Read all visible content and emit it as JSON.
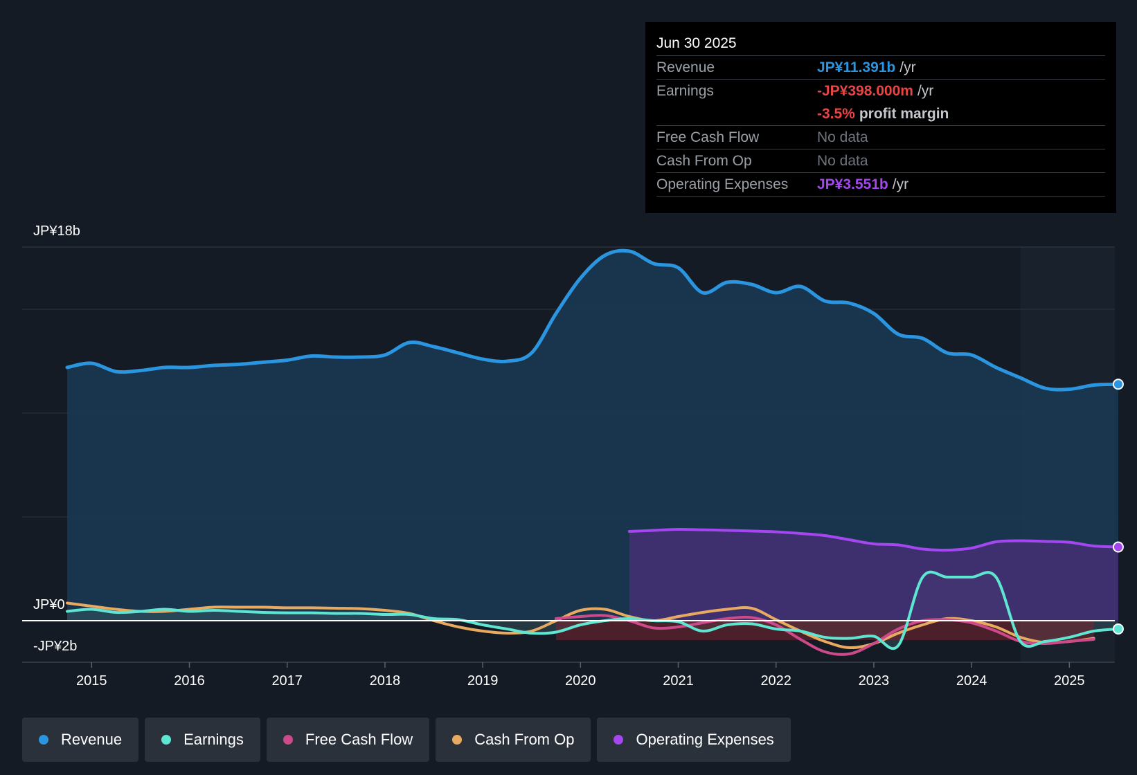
{
  "tooltip": {
    "date": "Jun 30 2025",
    "rows": [
      {
        "label": "Revenue",
        "value": "JP¥11.391b",
        "unit": "/yr"
      },
      {
        "label": "Earnings",
        "value": "-JP¥398.000m",
        "unit": "/yr"
      },
      {
        "margin_value": "-3.5%",
        "margin_text": "profit margin"
      },
      {
        "label": "Free Cash Flow",
        "value": "No data"
      },
      {
        "label": "Cash From Op",
        "value": "No data"
      },
      {
        "label": "Operating Expenses",
        "value": "JP¥3.551b",
        "unit": "/yr"
      }
    ]
  },
  "legend": [
    {
      "label": "Revenue",
      "color": "#2b95e0"
    },
    {
      "label": "Earnings",
      "color": "#5ee6d2"
    },
    {
      "label": "Free Cash Flow",
      "color": "#cc4a8a"
    },
    {
      "label": "Cash From Op",
      "color": "#e8aa60"
    },
    {
      "label": "Operating Expenses",
      "color": "#a447f0"
    }
  ],
  "colors": {
    "revenue": "#2b95e0",
    "earnings": "#5ee6d2",
    "free_cash_flow": "#cc4a8a",
    "cash_from_op": "#e8aa60",
    "operating_expenses": "#a447f0",
    "negative": "#e84545"
  },
  "chart_data": {
    "type": "area",
    "title": "",
    "y_axis_labels": [
      "JP¥18b",
      "JP¥0",
      "-JP¥2b"
    ],
    "ylim": [
      -2,
      18
    ],
    "xlim": [
      2014.75,
      2025.5
    ],
    "forecast_start": 2024.5,
    "x_ticks": [
      "2015",
      "2016",
      "2017",
      "2018",
      "2019",
      "2020",
      "2021",
      "2022",
      "2023",
      "2024",
      "2025"
    ],
    "x_tick_values": [
      2015,
      2016,
      2017,
      2018,
      2019,
      2020,
      2021,
      2022,
      2023,
      2024,
      2025
    ],
    "series": [
      {
        "name": "Revenue",
        "key": "revenue",
        "x": [
          2014.75,
          2015.0,
          2015.25,
          2015.5,
          2015.75,
          2016.0,
          2016.25,
          2016.5,
          2016.75,
          2017.0,
          2017.25,
          2017.5,
          2017.75,
          2018.0,
          2018.25,
          2018.5,
          2018.75,
          2019.0,
          2019.25,
          2019.5,
          2019.75,
          2020.0,
          2020.25,
          2020.5,
          2020.75,
          2021.0,
          2021.25,
          2021.5,
          2021.75,
          2022.0,
          2022.25,
          2022.5,
          2022.75,
          2023.0,
          2023.25,
          2023.5,
          2023.75,
          2024.0,
          2024.25,
          2024.5,
          2024.75,
          2025.0,
          2025.25,
          2025.5
        ],
        "values": [
          12.2,
          12.4,
          12.0,
          12.05,
          12.2,
          12.2,
          12.3,
          12.35,
          12.45,
          12.55,
          12.75,
          12.7,
          12.7,
          12.8,
          13.4,
          13.2,
          12.9,
          12.6,
          12.5,
          12.9,
          14.8,
          16.5,
          17.6,
          17.8,
          17.2,
          17.0,
          15.8,
          16.3,
          16.2,
          15.8,
          16.1,
          15.4,
          15.3,
          14.8,
          13.8,
          13.6,
          12.9,
          12.8,
          12.2,
          11.7,
          11.2,
          11.15,
          11.35,
          11.391
        ]
      },
      {
        "name": "Earnings",
        "key": "earnings",
        "x": [
          2014.75,
          2015.0,
          2015.25,
          2015.5,
          2015.75,
          2016.0,
          2016.25,
          2016.5,
          2016.75,
          2017.0,
          2017.25,
          2017.5,
          2017.75,
          2018.0,
          2018.25,
          2018.5,
          2018.75,
          2019.0,
          2019.25,
          2019.5,
          2019.75,
          2020.0,
          2020.25,
          2020.5,
          2020.75,
          2021.0,
          2021.25,
          2021.5,
          2021.75,
          2022.0,
          2022.25,
          2022.5,
          2022.75,
          2023.0,
          2023.25,
          2023.5,
          2023.75,
          2024.0,
          2024.25,
          2024.5,
          2024.75,
          2025.0,
          2025.25,
          2025.5
        ],
        "values": [
          0.45,
          0.55,
          0.4,
          0.45,
          0.55,
          0.45,
          0.5,
          0.45,
          0.4,
          0.38,
          0.38,
          0.35,
          0.35,
          0.3,
          0.3,
          0.1,
          0.05,
          -0.2,
          -0.4,
          -0.6,
          -0.55,
          -0.2,
          0.0,
          0.1,
          0.0,
          -0.05,
          -0.5,
          -0.2,
          -0.15,
          -0.4,
          -0.5,
          -0.8,
          -0.85,
          -0.75,
          -1.2,
          2.1,
          2.1,
          2.1,
          2.1,
          -1.0,
          -1.0,
          -0.8,
          -0.5,
          -0.398
        ]
      },
      {
        "name": "Free Cash Flow",
        "key": "free_cash_flow",
        "x": [
          2019.75,
          2020.0,
          2020.25,
          2020.5,
          2020.75,
          2021.0,
          2021.25,
          2021.5,
          2021.75,
          2022.0,
          2022.25,
          2022.5,
          2022.75,
          2023.0,
          2023.25,
          2023.5,
          2023.75,
          2024.0,
          2024.25,
          2024.5,
          2024.75,
          2025.0,
          2025.25
        ],
        "values": [
          0.1,
          0.2,
          0.25,
          0.0,
          -0.35,
          -0.3,
          -0.1,
          0.1,
          0.15,
          -0.2,
          -0.9,
          -1.5,
          -1.6,
          -1.1,
          -0.4,
          0.0,
          0.05,
          -0.1,
          -0.5,
          -1.0,
          -1.1,
          -1.0,
          -0.9
        ]
      },
      {
        "name": "Cash From Op",
        "key": "cash_from_op",
        "x": [
          2014.75,
          2015.0,
          2015.25,
          2015.5,
          2015.75,
          2016.0,
          2016.25,
          2016.5,
          2016.75,
          2017.0,
          2017.25,
          2017.5,
          2017.75,
          2018.0,
          2018.25,
          2018.5,
          2018.75,
          2019.0,
          2019.25,
          2019.5,
          2019.75,
          2020.0,
          2020.25,
          2020.5,
          2020.75,
          2021.0,
          2021.25,
          2021.5,
          2021.75,
          2022.0,
          2022.25,
          2022.5,
          2022.75,
          2023.0,
          2023.25,
          2023.5,
          2023.75,
          2024.0,
          2024.25,
          2024.5,
          2024.75,
          2025.0,
          2025.25
        ],
        "values": [
          0.85,
          0.7,
          0.55,
          0.45,
          0.45,
          0.55,
          0.65,
          0.65,
          0.65,
          0.62,
          0.62,
          0.6,
          0.58,
          0.5,
          0.35,
          0.0,
          -0.3,
          -0.5,
          -0.6,
          -0.5,
          0.0,
          0.5,
          0.55,
          0.2,
          0.0,
          0.2,
          0.4,
          0.55,
          0.6,
          0.05,
          -0.5,
          -1.0,
          -1.3,
          -1.1,
          -0.6,
          -0.2,
          0.1,
          0.0,
          -0.3,
          -0.8,
          -1.05,
          -1.0,
          -0.85
        ]
      },
      {
        "name": "Operating Expenses",
        "key": "operating_expenses",
        "x": [
          2020.5,
          2020.75,
          2021.0,
          2021.25,
          2021.5,
          2021.75,
          2022.0,
          2022.25,
          2022.5,
          2022.75,
          2023.0,
          2023.25,
          2023.5,
          2023.75,
          2024.0,
          2024.25,
          2024.5,
          2024.75,
          2025.0,
          2025.25,
          2025.5
        ],
        "values": [
          4.3,
          4.35,
          4.4,
          4.38,
          4.35,
          4.32,
          4.28,
          4.2,
          4.1,
          3.9,
          3.7,
          3.65,
          3.45,
          3.4,
          3.5,
          3.8,
          3.85,
          3.82,
          3.78,
          3.6,
          3.551
        ]
      }
    ]
  }
}
